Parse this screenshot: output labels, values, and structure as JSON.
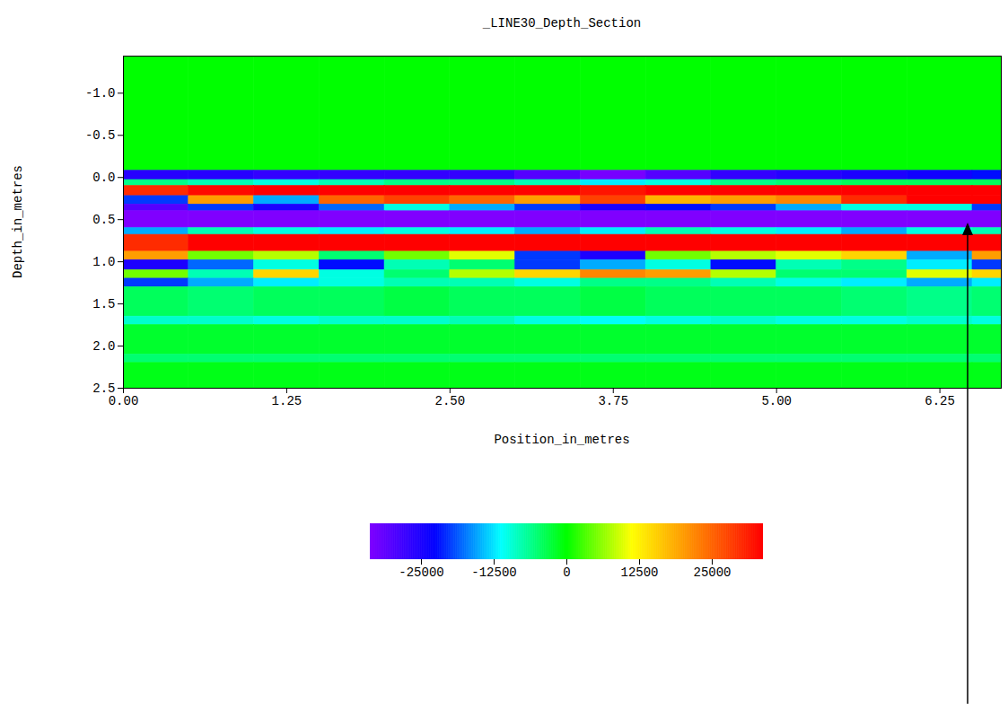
{
  "chart_data": {
    "type": "heatmap",
    "title": "_LINE30_Depth_Section",
    "x_label": "Position_in_metres",
    "y_label": "Depth_in_metres",
    "xlim": [
      0,
      6.72
    ],
    "ylim": [
      -1.44,
      2.5
    ],
    "xticks": [
      {
        "value": 0,
        "label": "0.00"
      },
      {
        "value": 1.25,
        "label": "1.25"
      },
      {
        "value": 2.5,
        "label": "2.50"
      },
      {
        "value": 3.75,
        "label": "3.75"
      },
      {
        "value": 5,
        "label": "5.00"
      },
      {
        "value": 6.25,
        "label": "6.25"
      }
    ],
    "yticks": [
      {
        "value": -1,
        "label": "-1.0"
      },
      {
        "value": -0.5,
        "label": "-0.5"
      },
      {
        "value": 0,
        "label": "0.0"
      },
      {
        "value": 0.5,
        "label": "0.5"
      },
      {
        "value": 1,
        "label": "1.0"
      },
      {
        "value": 1.5,
        "label": "1.5"
      },
      {
        "value": 2,
        "label": "2.0"
      },
      {
        "value": 2.5,
        "label": "2.5"
      }
    ],
    "x_edges": [
      0,
      0.5,
      1,
      1.5,
      2,
      2.5,
      3,
      3.5,
      4,
      4.5,
      5,
      5.5,
      6,
      6.5,
      6.72
    ],
    "y_edges": [
      -1.44,
      -0.08,
      0.03,
      0.1,
      0.22,
      0.32,
      0.4,
      0.6,
      0.68,
      0.88,
      0.98,
      1.1,
      1.2,
      1.3,
      1.65,
      1.75,
      2.1,
      2.2,
      2.5
    ],
    "cells": [
      [
        0,
        0,
        0,
        0,
        0,
        0,
        0,
        0,
        0,
        0,
        0,
        0,
        0,
        0
      ],
      [
        -26000,
        -26000,
        -27000,
        -27000,
        -27000,
        -27000,
        -30000,
        -33000,
        -30000,
        -27000,
        -26000,
        -25000,
        -24000,
        -22000
      ],
      [
        -6000,
        -8000,
        -10000,
        -8000,
        -6000,
        -6000,
        -8000,
        -12000,
        -10000,
        -6000,
        -5000,
        -4000,
        -4000,
        -4000
      ],
      [
        30000,
        33000,
        34000,
        34000,
        34000,
        34000,
        34000,
        32000,
        34000,
        34000,
        34000,
        34000,
        34000,
        34000
      ],
      [
        -20000,
        20000,
        -15000,
        25000,
        28000,
        25000,
        20000,
        28000,
        18000,
        20000,
        22000,
        30000,
        34000,
        34000
      ],
      [
        -30000,
        -20000,
        -25000,
        -18000,
        -10000,
        -15000,
        -20000,
        -25000,
        -22000,
        -20000,
        -15000,
        -10000,
        -10000,
        -20000
      ],
      [
        -34000,
        -34000,
        -34000,
        -34000,
        -34000,
        -34000,
        -34000,
        -34000,
        -34000,
        -34000,
        -34000,
        -34000,
        -34000,
        -34000
      ],
      [
        -15000,
        -8000,
        -10000,
        -12000,
        -10000,
        -12000,
        -15000,
        -12000,
        -8000,
        -10000,
        -12000,
        -15000,
        -10000,
        -8000
      ],
      [
        30000,
        34000,
        34000,
        34000,
        34000,
        34000,
        34000,
        34000,
        34000,
        34000,
        34000,
        34000,
        34000,
        34000
      ],
      [
        20000,
        5000,
        8000,
        -5000,
        5000,
        10000,
        -20000,
        -25000,
        5000,
        8000,
        10000,
        15000,
        -15000,
        20000
      ],
      [
        -25000,
        -18000,
        -10000,
        -22000,
        -8000,
        -5000,
        -20000,
        -15000,
        -10000,
        -22000,
        -8000,
        -6000,
        -12000,
        -20000
      ],
      [
        5000,
        -8000,
        15000,
        -10000,
        -5000,
        8000,
        15000,
        22000,
        20000,
        8000,
        -5000,
        -5000,
        10000,
        15000
      ],
      [
        -20000,
        -15000,
        -12000,
        -10000,
        -8000,
        -8000,
        -10000,
        -6000,
        -6000,
        -8000,
        -10000,
        -12000,
        -15000,
        -12000
      ],
      [
        -4000,
        -5000,
        -4000,
        -4000,
        -3000,
        -4000,
        -4000,
        -3000,
        -4000,
        -4000,
        -4000,
        -5000,
        -6000,
        -5000
      ],
      [
        -9000,
        -9000,
        -10000,
        -9000,
        -9000,
        -8000,
        -10000,
        -11000,
        -10000,
        -9000,
        -10000,
        -10000,
        -9000,
        -10000
      ],
      [
        -2000,
        -2000,
        -2000,
        -2000,
        -2000,
        -2000,
        -2000,
        -2000,
        -2000,
        -2000,
        -2000,
        -2000,
        -2000,
        -2000
      ],
      [
        -5000,
        -5000,
        -5000,
        -5000,
        -5000,
        -5000,
        -5000,
        -5000,
        -5000,
        -5000,
        -5000,
        -5000,
        -5000,
        -5000
      ],
      [
        -1000,
        -1000,
        -1000,
        -1000,
        -1000,
        -1000,
        -1000,
        -1000,
        -1000,
        -1000,
        -1000,
        -1000,
        -1000,
        -1000
      ]
    ],
    "colorbar_range": [
      -33800,
      33800
    ],
    "colorbar_ticks": [
      -25000,
      -12500,
      0,
      12500,
      25000
    ]
  }
}
